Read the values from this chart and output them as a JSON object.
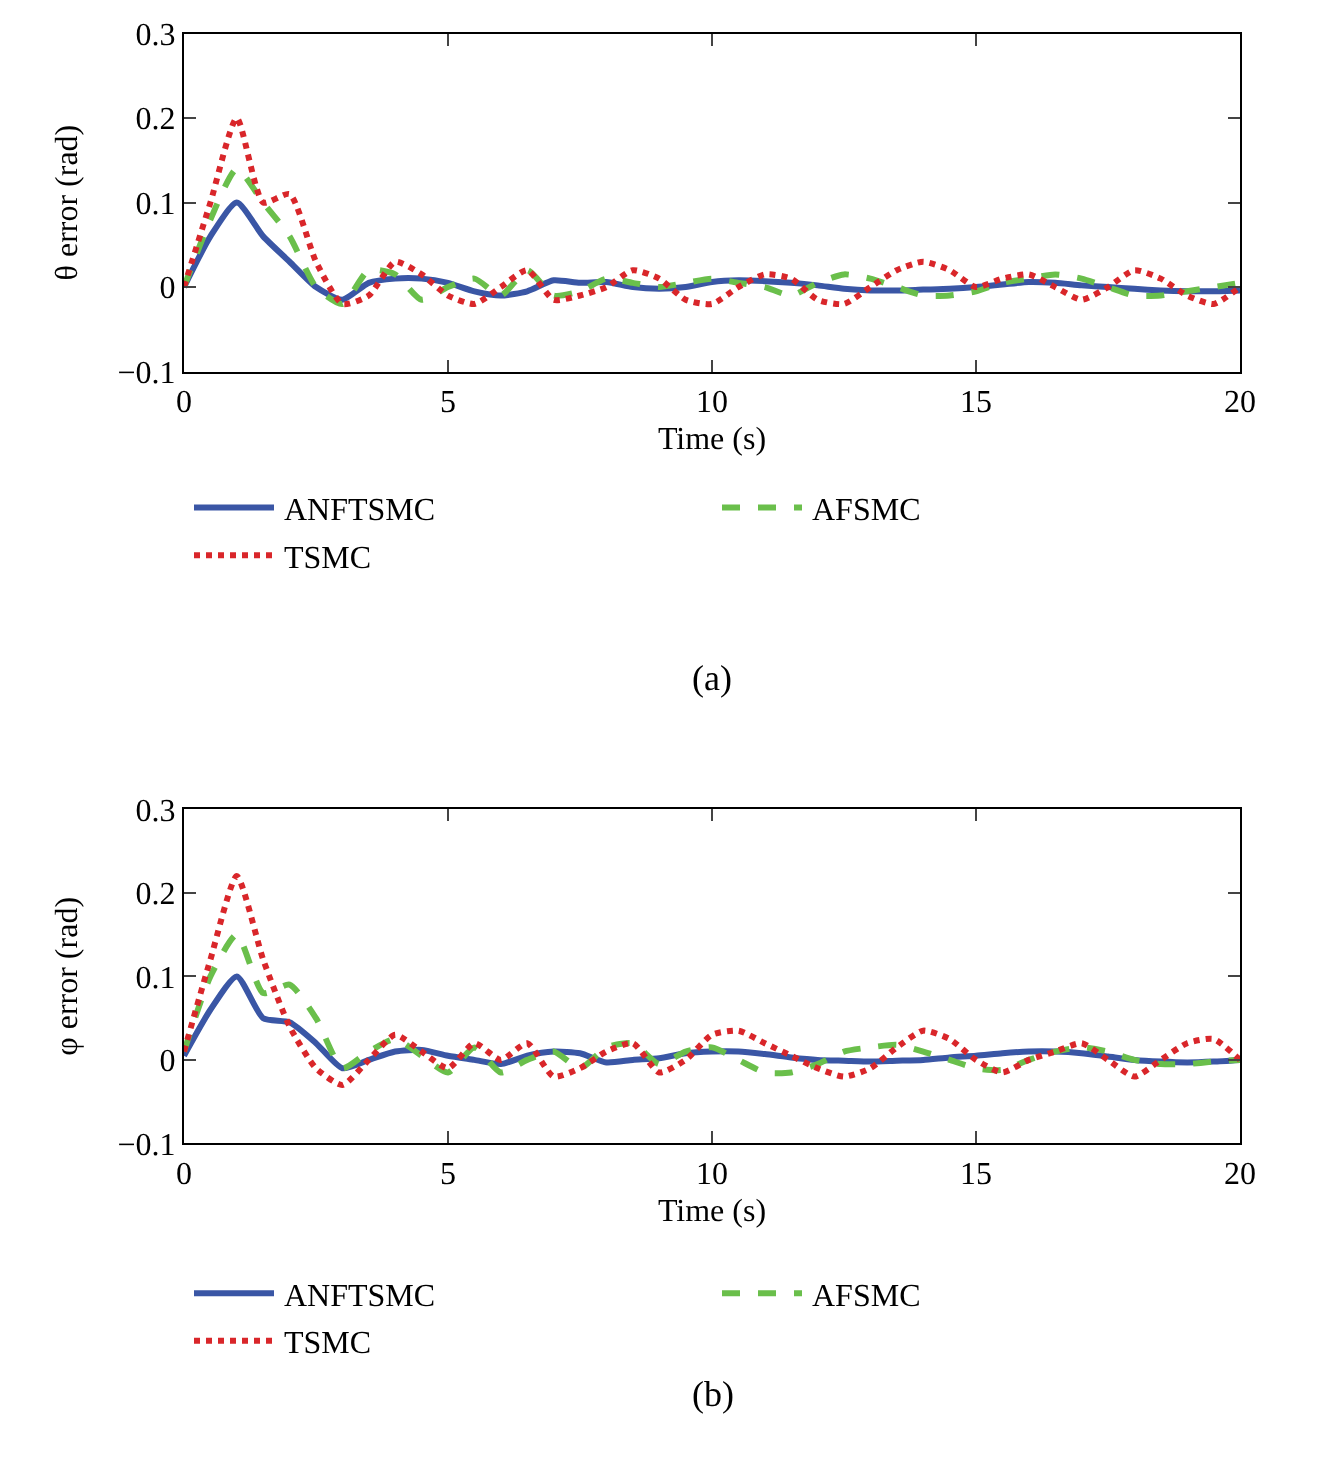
{
  "chart_data": [
    {
      "type": "line",
      "xlabel": "Time (s)",
      "ylabel": "θ error (rad)",
      "annotations": [
        "(a)"
      ],
      "xlim": [
        0,
        20
      ],
      "ylim": [
        -0.1,
        0.3
      ],
      "xticks": [
        0,
        5,
        10,
        15,
        20
      ],
      "yticks": [
        -0.1,
        0,
        0.1,
        0.2,
        0.3
      ],
      "legend": "bottom",
      "x": [
        0,
        0.5,
        1,
        1.5,
        2,
        2.5,
        3,
        3.5,
        4,
        4.5,
        5,
        5.5,
        6,
        6.5,
        7,
        7.5,
        8,
        8.5,
        9,
        9.5,
        10,
        10.5,
        11,
        11.5,
        12,
        12.5,
        13,
        13.5,
        14,
        14.5,
        15,
        15.5,
        16,
        16.5,
        17,
        17.5,
        18,
        18.5,
        19,
        19.5,
        20
      ],
      "series": [
        {
          "name": "ANFTSMC",
          "color": "#3a56a5",
          "line_style": "solid",
          "values": [
            0,
            0.06,
            0.1,
            0.06,
            0.03,
            0,
            -0.015,
            0.005,
            0.01,
            0.01,
            0.005,
            -0.005,
            -0.01,
            -0.005,
            0.008,
            0.005,
            0.006,
            0,
            -0.002,
            0,
            0.006,
            0.008,
            0.007,
            0.005,
            0.002,
            -0.002,
            -0.004,
            -0.004,
            -0.003,
            -0.002,
            0,
            0.003,
            0.006,
            0.005,
            0.002,
            0,
            -0.002,
            -0.004,
            -0.005,
            -0.005,
            -0.004
          ]
        },
        {
          "name": "AFSMC",
          "color": "#6abf4b",
          "line_style": "dashed",
          "values": [
            0,
            0.08,
            0.14,
            0.1,
            0.06,
            0,
            -0.02,
            0.02,
            0.015,
            -0.015,
            0,
            0.01,
            -0.01,
            0.02,
            -0.01,
            -0.005,
            0.01,
            0.005,
            0,
            0.005,
            0.01,
            0.005,
            0,
            -0.01,
            0.005,
            0.015,
            0.01,
            0,
            -0.01,
            -0.01,
            -0.005,
            0.005,
            0.01,
            0.015,
            0.01,
            0,
            -0.01,
            -0.01,
            -0.005,
            0,
            0.005
          ]
        },
        {
          "name": "TSMC",
          "color": "#d9262a",
          "line_style": "dotted",
          "values": [
            0,
            0.1,
            0.2,
            0.1,
            0.11,
            0.03,
            -0.02,
            -0.01,
            0.03,
            0.015,
            -0.01,
            -0.02,
            0,
            0.02,
            -0.015,
            -0.01,
            0,
            0.02,
            0.01,
            -0.015,
            -0.02,
            0,
            0.015,
            0.01,
            -0.015,
            -0.02,
            0,
            0.02,
            0.03,
            0.02,
            0,
            0.01,
            0.015,
            0,
            -0.015,
            0,
            0.02,
            0.01,
            -0.01,
            -0.02,
            0
          ]
        }
      ]
    },
    {
      "type": "line",
      "xlabel": "Time (s)",
      "ylabel": "φ error (rad)",
      "annotations": [
        "(b)"
      ],
      "xlim": [
        0,
        20
      ],
      "ylim": [
        -0.1,
        0.3
      ],
      "xticks": [
        0,
        5,
        10,
        15,
        20
      ],
      "yticks": [
        -0.1,
        0,
        0.1,
        0.2,
        0.3
      ],
      "legend": "bottom",
      "x": [
        0,
        0.5,
        1,
        1.5,
        2,
        2.5,
        3,
        3.5,
        4,
        4.5,
        5,
        5.5,
        6,
        6.5,
        7,
        7.5,
        8,
        8.5,
        9,
        9.5,
        10,
        10.5,
        11,
        11.5,
        12,
        12.5,
        13,
        13.5,
        14,
        14.5,
        15,
        15.5,
        16,
        16.5,
        17,
        17.5,
        18,
        18.5,
        19,
        19.5,
        20
      ],
      "series": [
        {
          "name": "ANFTSMC",
          "color": "#3a56a5",
          "line_style": "solid",
          "values": [
            0.005,
            0.06,
            0.1,
            0.05,
            0.045,
            0.02,
            -0.01,
            0,
            0.01,
            0.012,
            0.005,
            0,
            -0.005,
            0.005,
            0.01,
            0.008,
            -0.003,
            0,
            0.002,
            0.008,
            0.01,
            0.01,
            0.007,
            0.003,
            0,
            -0.001,
            -0.002,
            -0.001,
            0,
            0.003,
            0.005,
            0.008,
            0.01,
            0.01,
            0.008,
            0.004,
            0,
            -0.002,
            -0.003,
            -0.002,
            0
          ]
        },
        {
          "name": "AFSMC",
          "color": "#6abf4b",
          "line_style": "dashed",
          "values": [
            0.01,
            0.1,
            0.15,
            0.08,
            0.09,
            0.05,
            -0.01,
            0.01,
            0.025,
            0.005,
            -0.015,
            0.015,
            -0.015,
            0,
            0.01,
            -0.01,
            0.015,
            0.02,
            -0.005,
            0.01,
            0.015,
            0,
            -0.015,
            -0.015,
            -0.005,
            0.01,
            0.015,
            0.018,
            0.01,
            0,
            -0.01,
            -0.012,
            0,
            0.01,
            0.015,
            0.01,
            0,
            -0.005,
            -0.005,
            -0.002,
            0
          ]
        },
        {
          "name": "TSMC",
          "color": "#d9262a",
          "line_style": "dotted",
          "values": [
            0.01,
            0.12,
            0.22,
            0.12,
            0.04,
            -0.01,
            -0.03,
            0,
            0.03,
            0.01,
            -0.01,
            0.02,
            0,
            0.02,
            -0.02,
            -0.01,
            0.01,
            0.02,
            -0.015,
            0,
            0.03,
            0.035,
            0.02,
            0.005,
            -0.01,
            -0.02,
            -0.01,
            0.015,
            0.035,
            0.025,
            0,
            -0.015,
            0,
            0.01,
            0.02,
            0,
            -0.02,
            0,
            0.02,
            0.025,
            0
          ]
        }
      ]
    }
  ]
}
